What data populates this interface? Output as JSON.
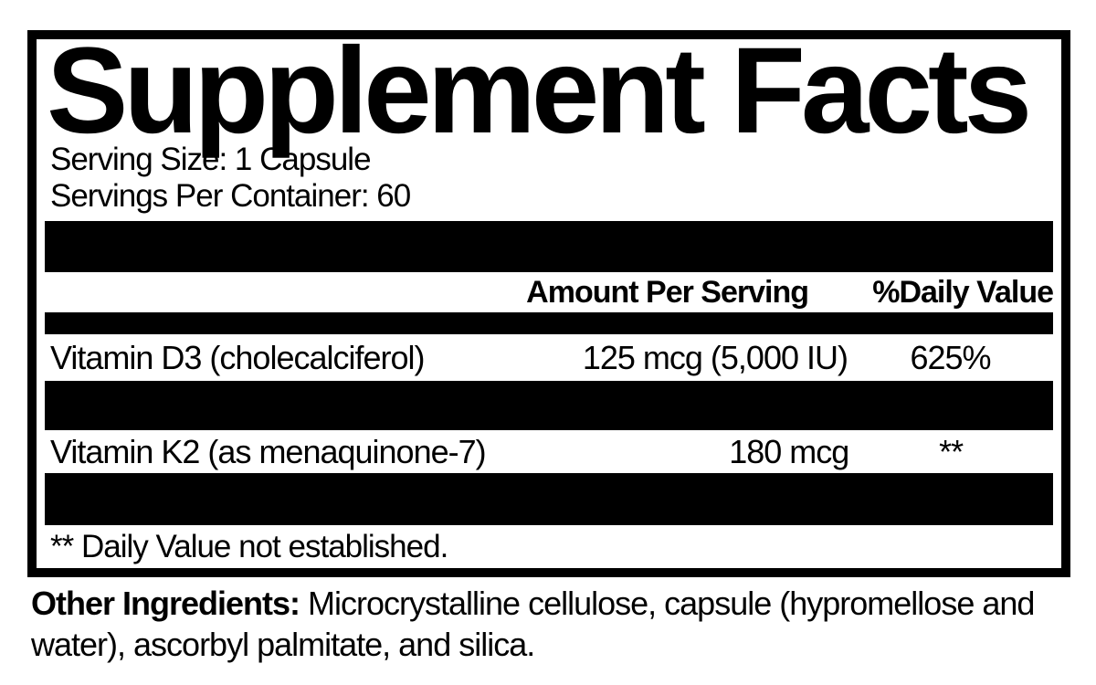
{
  "panel": {
    "title": "Supplement Facts",
    "serving_size": "Serving Size: 1 Capsule",
    "servings_per_container": "Servings Per Container: 60",
    "header": {
      "amount": "Amount Per Serving",
      "daily_value": "%Daily Value"
    },
    "rows": [
      {
        "name": "Vitamin D3 (cholecalciferol)",
        "amount": "125 mcg (5,000 IU)",
        "dv": "625%"
      },
      {
        "name": "Vitamin K2 (as menaquinone-7)",
        "amount": "180 mcg",
        "dv": "**"
      }
    ],
    "footnote": "** Daily Value not established."
  },
  "other_ingredients": {
    "label": "Other Ingredients:",
    "text": " Microcrystalline cellulose, capsule (hypromellose and water), ascorbyl palmitate, and silica."
  },
  "colors": {
    "ink": "#000000",
    "background": "#ffffff"
  }
}
